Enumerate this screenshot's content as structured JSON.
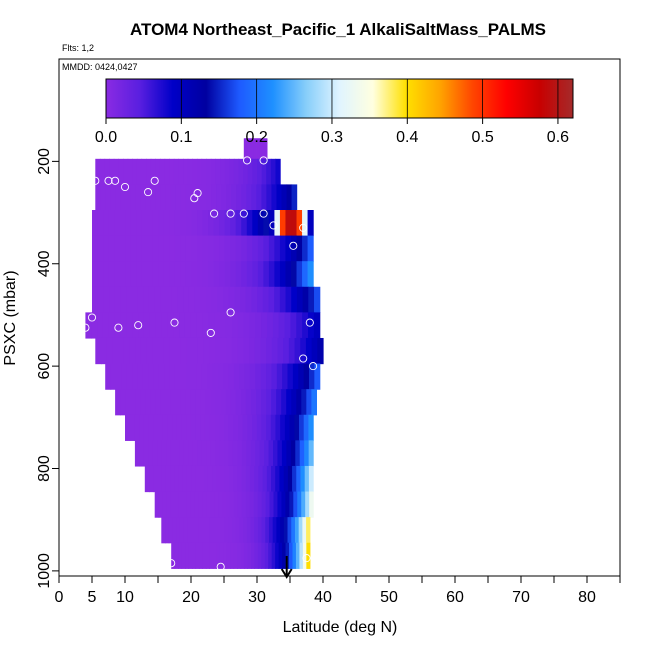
{
  "chart_data": {
    "type": "heatmap",
    "title": "ATOM4 Northeast_Pacific_1 AlkaliSaltMass_PALMS",
    "flights_label": "Flts: 1,2",
    "dates_label": "MMDD: 0424,0427",
    "xlabel": "Latitude (deg N)",
    "ylabel": "PSXC (mbar)",
    "xlim": [
      0,
      85
    ],
    "ylim": [
      1010,
      0
    ],
    "x_ticks": [
      0,
      5,
      10,
      20,
      30,
      40,
      50,
      60,
      70,
      80
    ],
    "x_minor_ticks": [
      15,
      25,
      35,
      45,
      55,
      65,
      75,
      85
    ],
    "y_ticks": [
      200,
      400,
      600,
      800,
      1000
    ],
    "grid": false,
    "colorbar": {
      "ticks": [
        0.0,
        0.1,
        0.2,
        0.3,
        0.4,
        0.5,
        0.6
      ],
      "range": [
        0,
        0.62
      ],
      "colors": [
        "#8a2be2",
        "#5a1fe0",
        "#0000c8",
        "#0000a0",
        "#1e5aff",
        "#1e90ff",
        "#87cefa",
        "#e0f4ff",
        "#ffffe0",
        "#ffe000",
        "#ffa500",
        "#ff4500",
        "#ff0000",
        "#c80000",
        "#a52a2a"
      ]
    },
    "rows": [
      {
        "p": 180,
        "lat_min": 28.0,
        "lat_max": 31.5,
        "v_start": 0.0,
        "v_end": 0.0
      },
      {
        "p": 220,
        "lat_min": 5.5,
        "lat_max": 33.5,
        "v_start": 0.0,
        "v_end": 0.08
      },
      {
        "p": 270,
        "lat_min": 5.5,
        "lat_max": 36.0,
        "v_start": 0.0,
        "v_end": 0.15
      },
      {
        "p": 320,
        "lat_min": 5.0,
        "lat_max": 38.5,
        "v_start": 0.0,
        "v_end": 0.55,
        "hot": true
      },
      {
        "p": 370,
        "lat_min": 5.0,
        "lat_max": 38.5,
        "v_start": 0.0,
        "v_end": 0.18
      },
      {
        "p": 420,
        "lat_min": 5.0,
        "lat_max": 38.5,
        "v_start": 0.0,
        "v_end": 0.22
      },
      {
        "p": 470,
        "lat_min": 5.0,
        "lat_max": 39.5,
        "v_start": 0.0,
        "v_end": 0.17
      },
      {
        "p": 520,
        "lat_min": 4.0,
        "lat_max": 39.5,
        "v_start": 0.0,
        "v_end": 0.1
      },
      {
        "p": 570,
        "lat_min": 5.5,
        "lat_max": 40.0,
        "v_start": 0.0,
        "v_end": 0.12
      },
      {
        "p": 620,
        "lat_min": 7.0,
        "lat_max": 39.5,
        "v_start": 0.0,
        "v_end": 0.18
      },
      {
        "p": 670,
        "lat_min": 8.5,
        "lat_max": 39.0,
        "v_start": 0.0,
        "v_end": 0.2
      },
      {
        "p": 720,
        "lat_min": 10.0,
        "lat_max": 38.5,
        "v_start": 0.0,
        "v_end": 0.22
      },
      {
        "p": 770,
        "lat_min": 11.5,
        "lat_max": 38.5,
        "v_start": 0.0,
        "v_end": 0.25
      },
      {
        "p": 820,
        "lat_min": 13.0,
        "lat_max": 38.5,
        "v_start": 0.0,
        "v_end": 0.3
      },
      {
        "p": 870,
        "lat_min": 14.5,
        "lat_max": 38.5,
        "v_start": 0.0,
        "v_end": 0.33
      },
      {
        "p": 920,
        "lat_min": 15.5,
        "lat_max": 38.0,
        "v_start": 0.0,
        "v_end": 0.38
      },
      {
        "p": 970,
        "lat_min": 17.0,
        "lat_max": 38.0,
        "v_start": 0.0,
        "v_end": 0.4
      }
    ],
    "points": [
      [
        28.5,
        198
      ],
      [
        31.0,
        198
      ],
      [
        5.5,
        238
      ],
      [
        7.5,
        238
      ],
      [
        8.5,
        238
      ],
      [
        14.5,
        238
      ],
      [
        10.0,
        250
      ],
      [
        13.5,
        260
      ],
      [
        21.0,
        262
      ],
      [
        20.5,
        272
      ],
      [
        23.5,
        302
      ],
      [
        26.0,
        302
      ],
      [
        28.0,
        302
      ],
      [
        31.0,
        302
      ],
      [
        32.5,
        325
      ],
      [
        37.0,
        330
      ],
      [
        35.5,
        365
      ],
      [
        4.0,
        525
      ],
      [
        5.0,
        505
      ],
      [
        9.0,
        525
      ],
      [
        12.0,
        520
      ],
      [
        17.5,
        515
      ],
      [
        23.0,
        535
      ],
      [
        26.0,
        495
      ],
      [
        38.0,
        515
      ],
      [
        37.0,
        585
      ],
      [
        38.5,
        600
      ],
      [
        17.0,
        985
      ],
      [
        24.5,
        992
      ],
      [
        37.5,
        975
      ]
    ],
    "arrow_lat": 34.5
  }
}
